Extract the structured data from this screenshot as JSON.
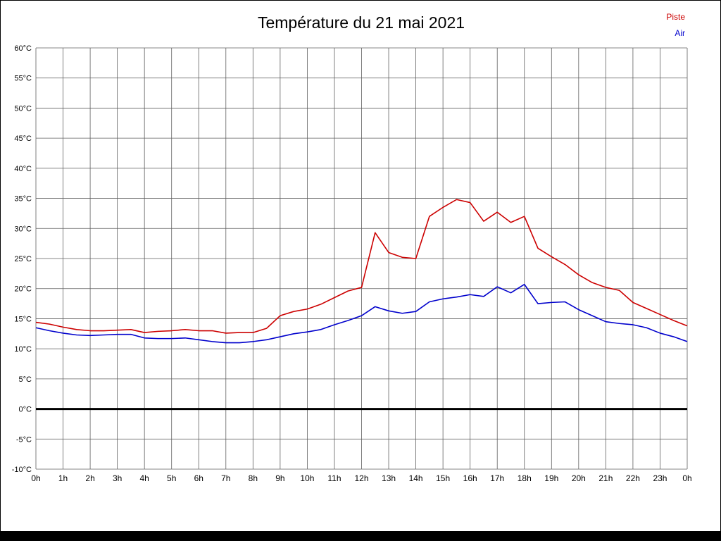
{
  "legend": {
    "piste": "Piste",
    "air": "Air"
  },
  "colors": {
    "piste": "#cc0000",
    "air": "#0000cc",
    "grid": "#5f5f5f",
    "zero_line": "#000000",
    "tick_text": "#000000"
  },
  "chart_data": {
    "type": "line",
    "title": "Température du 21 mai 2021",
    "xlabel": "",
    "ylabel": "",
    "x_range": [
      0,
      24
    ],
    "y_range": [
      -10,
      60
    ],
    "x_step_hours": 0.5,
    "grid": true,
    "zero_line_at": 0,
    "legend_position": "top-right",
    "x_labels": [
      "0h",
      "1h",
      "2h",
      "3h",
      "4h",
      "5h",
      "6h",
      "7h",
      "8h",
      "9h",
      "10h",
      "11h",
      "12h",
      "13h",
      "14h",
      "15h",
      "16h",
      "17h",
      "18h",
      "19h",
      "20h",
      "21h",
      "22h",
      "23h",
      "0h"
    ],
    "y_ticks": [
      60,
      55,
      50,
      45,
      40,
      35,
      30,
      25,
      20,
      15,
      10,
      5,
      0,
      -5,
      -10
    ],
    "y_tick_suffix": "°C",
    "series": [
      {
        "name": "Piste",
        "color": "#cc0000",
        "values": [
          14.4,
          14.1,
          13.6,
          13.2,
          13.0,
          13.0,
          13.1,
          13.2,
          12.7,
          12.9,
          13.0,
          13.2,
          13.0,
          13.0,
          12.6,
          12.7,
          12.7,
          13.4,
          15.5,
          16.2,
          16.6,
          17.4,
          18.5,
          19.6,
          20.2,
          29.3,
          26.0,
          25.2,
          25.0,
          32.0,
          33.5,
          34.8,
          34.3,
          31.2,
          32.7,
          31.0,
          32.0,
          26.7,
          25.3,
          24.0,
          22.3,
          21.0,
          20.2,
          19.7,
          17.7,
          16.7,
          15.7,
          14.7,
          13.8
        ]
      },
      {
        "name": "Air",
        "color": "#0000cc",
        "values": [
          13.5,
          13.0,
          12.6,
          12.3,
          12.2,
          12.3,
          12.4,
          12.4,
          11.8,
          11.7,
          11.7,
          11.8,
          11.5,
          11.2,
          11.0,
          11.0,
          11.2,
          11.5,
          12.0,
          12.5,
          12.8,
          13.2,
          14.0,
          14.7,
          15.5,
          17.0,
          16.3,
          15.9,
          16.2,
          17.8,
          18.3,
          18.6,
          19.0,
          18.7,
          20.3,
          19.3,
          20.7,
          17.5,
          17.7,
          17.8,
          16.5,
          15.5,
          14.5,
          14.2,
          14.0,
          13.5,
          12.6,
          12.0,
          11.2
        ]
      }
    ]
  }
}
